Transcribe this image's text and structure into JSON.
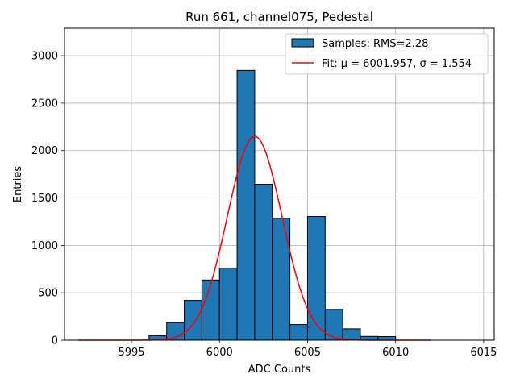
{
  "chart_data": {
    "type": "bar",
    "title": "Run 661, channel075, Pedestal",
    "xlabel": "ADC Counts",
    "ylabel": "Entries",
    "xlim": [
      5991.2,
      6015.6
    ],
    "ylim": [
      0,
      3290
    ],
    "xticks": [
      5995,
      6000,
      6005,
      6010,
      6015
    ],
    "yticks": [
      0,
      500,
      1000,
      1500,
      2000,
      2500,
      3000
    ],
    "grid": true,
    "legend_position": "top-right",
    "bar_color": "#1f77b4",
    "fit_color": "#ff0000",
    "bins": [
      {
        "left": 5996,
        "right": 5997,
        "value": 48
      },
      {
        "left": 5997,
        "right": 5998,
        "value": 185
      },
      {
        "left": 5998,
        "right": 5999,
        "value": 420
      },
      {
        "left": 5999,
        "right": 6000,
        "value": 635
      },
      {
        "left": 6000,
        "right": 6001,
        "value": 760
      },
      {
        "left": 6001,
        "right": 6002,
        "value": 2845
      },
      {
        "left": 6002,
        "right": 6003,
        "value": 1645
      },
      {
        "left": 6003,
        "right": 6004,
        "value": 1285
      },
      {
        "left": 6004,
        "right": 6005,
        "value": 165
      },
      {
        "left": 6005,
        "right": 6006,
        "value": 1305
      },
      {
        "left": 6006,
        "right": 6007,
        "value": 325
      },
      {
        "left": 6007,
        "right": 6008,
        "value": 120
      },
      {
        "left": 6008,
        "right": 6009,
        "value": 40
      },
      {
        "left": 6009,
        "right": 6010,
        "value": 38
      }
    ],
    "fit": {
      "mu": 6002.0,
      "sigma": 1.554,
      "amplitude": 2150,
      "x_range": [
        5992,
        6012
      ]
    },
    "legend": [
      {
        "label": "Samples: RMS=2.28",
        "kind": "patch"
      },
      {
        "label": "Fit: μ = 6001.957, σ = 1.554",
        "kind": "line"
      }
    ]
  }
}
